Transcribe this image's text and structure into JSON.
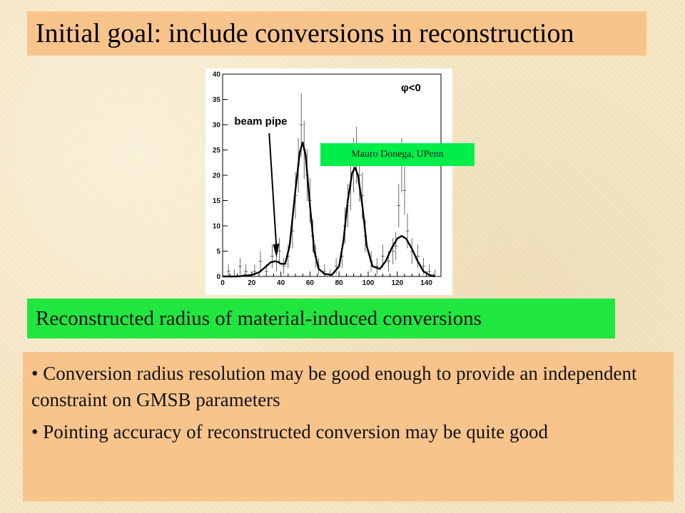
{
  "title": "Initial goal: include conversions in reconstruction",
  "credit": "Mauro Donega, UPenn",
  "caption": "Reconstructed radius of material-induced conversions",
  "bullets": [
    "• Conversion radius resolution may be good enough to provide an independent constraint on GMSB parameters",
    "• Pointing accuracy of reconstructed conversion may be quite good"
  ],
  "chart_data": {
    "type": "line",
    "title": "",
    "xlabel": "",
    "ylabel": "",
    "xlim": [
      0,
      150
    ],
    "ylim": [
      0,
      40
    ],
    "xticks": [
      0,
      20,
      40,
      60,
      80,
      100,
      120,
      140
    ],
    "yticks": [
      0,
      5,
      10,
      15,
      20,
      25,
      30,
      35,
      40
    ],
    "annotations": [
      {
        "text": "φ<0",
        "position": "top-right"
      },
      {
        "text": "beam pipe",
        "points_to_x": 37
      }
    ],
    "series": [
      {
        "kind": "fit-curve",
        "x": [
          0,
          10,
          20,
          25,
          30,
          33,
          36,
          38,
          40,
          43,
          46,
          50,
          53,
          55,
          57,
          60,
          63,
          66,
          70,
          75,
          80,
          83,
          86,
          89,
          91,
          93,
          96,
          99,
          103,
          108,
          112,
          116,
          120,
          123,
          126,
          130,
          134,
          138,
          142,
          146
        ],
        "y": [
          0,
          0,
          0.3,
          0.8,
          2,
          2.8,
          3,
          2.9,
          2.5,
          2.5,
          6,
          17,
          24.5,
          26.5,
          24,
          14,
          5,
          1.5,
          0.5,
          0.3,
          2,
          7,
          15,
          20.5,
          21.5,
          20,
          14,
          6,
          2,
          1.5,
          3,
          5.5,
          7.5,
          8,
          7.5,
          5.5,
          3,
          1,
          0.3,
          0
        ]
      },
      {
        "kind": "data-points",
        "x": [
          4,
          8,
          12,
          16,
          22,
          26,
          30,
          34,
          37,
          39,
          42,
          45,
          48,
          50,
          52,
          54,
          56,
          58,
          60,
          62,
          64,
          66,
          70,
          74,
          78,
          82,
          84,
          86,
          88,
          90,
          92,
          94,
          96,
          98,
          102,
          106,
          110,
          114,
          117,
          119,
          121,
          123,
          125,
          127,
          130,
          134,
          138,
          142,
          146
        ],
        "y": [
          1,
          0,
          2,
          1,
          1,
          3,
          1,
          4,
          3,
          5,
          2,
          4,
          9,
          16,
          22,
          30,
          25,
          20,
          15,
          8,
          4,
          2,
          1,
          0,
          2,
          4,
          10,
          14,
          18,
          22,
          24,
          20,
          16,
          8,
          3,
          2,
          4,
          3,
          5,
          6,
          14,
          22,
          17,
          9,
          5,
          4,
          2,
          1,
          0
        ]
      }
    ]
  }
}
